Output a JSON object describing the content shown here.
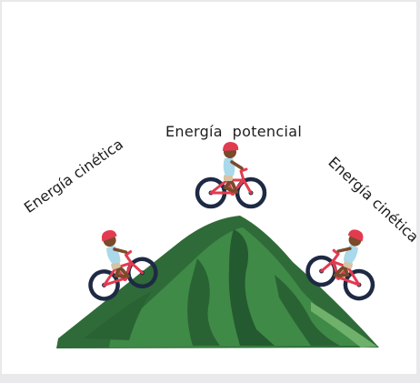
{
  "labels": {
    "top": "Energía  potencial",
    "left": "Energía cinética",
    "right": "Energía cinética"
  },
  "colors": {
    "background": "#ffffff",
    "mountain_dark": "#2f6b38",
    "mountain_mid": "#3f8a47",
    "mountain_light": "#6fb06a",
    "bike_frame": "#e23b50",
    "helmet": "#e23b50",
    "shirt": "#a9d9ea",
    "skin": "#7a4a2b",
    "wheel": "#1e2a44"
  },
  "icons": [
    "mountain-icon",
    "cyclist-icon"
  ]
}
